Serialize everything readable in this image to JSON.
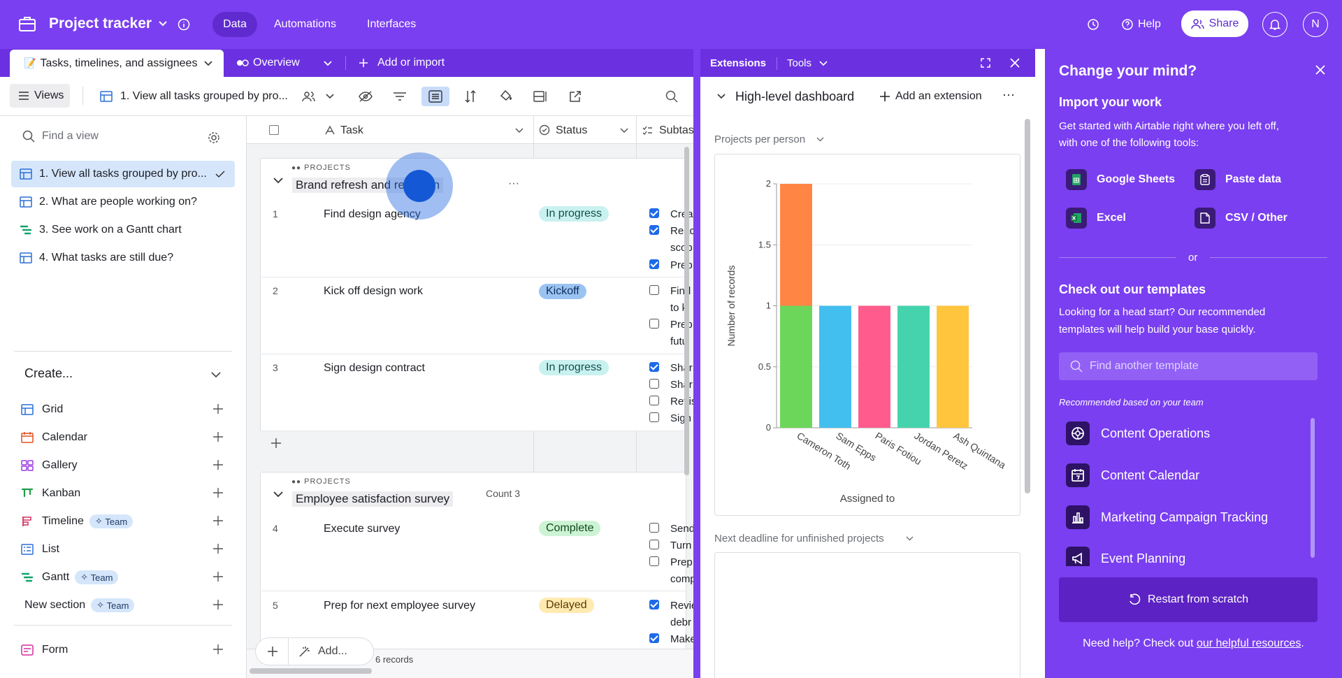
{
  "app": {
    "title": "Project tracker",
    "nav": [
      "Data",
      "Automations",
      "Interfaces"
    ],
    "help": "Help",
    "share": "Share",
    "avatar": "N"
  },
  "tabs": {
    "active": "Tasks, timelines, and assignees",
    "overview": "Overview",
    "add": "Add or import"
  },
  "toolbar": {
    "views": "Views",
    "current_view": "1. View all tasks grouped by pro..."
  },
  "sidebar": {
    "find_placeholder": "Find a view",
    "views": [
      "1. View all tasks grouped by pro...",
      "2. What are people working on?",
      "3. See work on a Gantt chart",
      "4. What tasks are still due?"
    ],
    "create_label": "Create...",
    "create": [
      {
        "label": "Grid"
      },
      {
        "label": "Calendar"
      },
      {
        "label": "Gallery"
      },
      {
        "label": "Kanban"
      },
      {
        "label": "Timeline",
        "badge": "Team"
      },
      {
        "label": "List"
      },
      {
        "label": "Gantt",
        "badge": "Team"
      },
      {
        "label": "New section",
        "badge": "Team"
      },
      {
        "label": "Form"
      }
    ]
  },
  "grid": {
    "columns": [
      "Task",
      "Status",
      "Subtas"
    ],
    "groups": [
      {
        "label": "PROJECTS",
        "name": "Brand refresh and redesign"
      },
      {
        "label": "PROJECTS",
        "name": "Employee satisfaction survey",
        "count": "Count 3"
      }
    ],
    "rows": [
      {
        "num": "1",
        "task": "Find design agency",
        "status": "In progress",
        "subtasks": [
          "Crea",
          "Reac",
          "scop",
          "Prep"
        ]
      },
      {
        "num": "2",
        "task": "Kick off design work",
        "status": "Kickoff",
        "subtasks": [
          "Find",
          "to ki",
          "Prep",
          "futu"
        ]
      },
      {
        "num": "3",
        "task": "Sign design contract",
        "status": "In progress",
        "subtasks": [
          "Shar",
          "Shar",
          "Revis",
          "Sign"
        ]
      },
      {
        "num": "4",
        "task": "Execute survey",
        "status": "Complete",
        "subtasks": [
          "Send",
          "Turn",
          "Prep",
          "comp"
        ]
      },
      {
        "num": "5",
        "task": "Prep for next employee survey",
        "status": "Delayed",
        "subtasks": [
          "Revie",
          "debr",
          "Make"
        ]
      }
    ],
    "add_label": "Add...",
    "records": "6 records"
  },
  "extensions": {
    "tab": "Extensions",
    "tools": "Tools",
    "dashboard": "High-level dashboard",
    "add_extension": "Add an extension",
    "chart1_title": "Projects per person",
    "chart2_title": "Next deadline for unfinished projects"
  },
  "chart_data": {
    "type": "bar",
    "stacked": true,
    "categories": [
      "Cameron Toth",
      "Sam Epps",
      "Paris Fotiou",
      "Jordan Peretz",
      "Ash Quintana"
    ],
    "series": [
      {
        "values": [
          1,
          1,
          1,
          1,
          1
        ]
      },
      {
        "values": [
          1,
          0,
          0,
          0,
          0
        ]
      }
    ],
    "xlabel": "Assigned to",
    "ylabel": "Number of records",
    "ylim": [
      0,
      2
    ],
    "yticks": [
      "0",
      "0.5",
      "1",
      "1.5",
      "2"
    ],
    "colors": {
      "Cameron Toth": [
        "#6cd65a",
        "#ff8545"
      ],
      "Sam Epps": [
        "#43bfef"
      ],
      "Paris Fotiou": [
        "#ff5c8d"
      ],
      "Jordan Peretz": [
        "#45d3ad"
      ],
      "Ash Quintana": [
        "#ffc53d"
      ]
    }
  },
  "right_panel": {
    "title": "Change your mind?",
    "import_title": "Import your work",
    "import_text_1": "Get started with Airtable right where you left off,",
    "import_text_2": "with one of the following tools:",
    "tools": [
      "Google Sheets",
      "Paste data",
      "Excel",
      "CSV / Other"
    ],
    "or": "or",
    "templates_title": "Check out our templates",
    "templates_text_1": "Looking for a head start? Our recommended",
    "templates_text_2": "templates will help build your base quickly.",
    "search_placeholder": "Find another template",
    "recommended": "Recommended based on your team",
    "templates": [
      "Content Operations",
      "Content Calendar",
      "Marketing Campaign Tracking",
      "Event Planning"
    ],
    "restart": "Restart from scratch",
    "help_prefix": "Need help? Check out ",
    "help_link": "our helpful resources",
    "help_suffix": "."
  }
}
